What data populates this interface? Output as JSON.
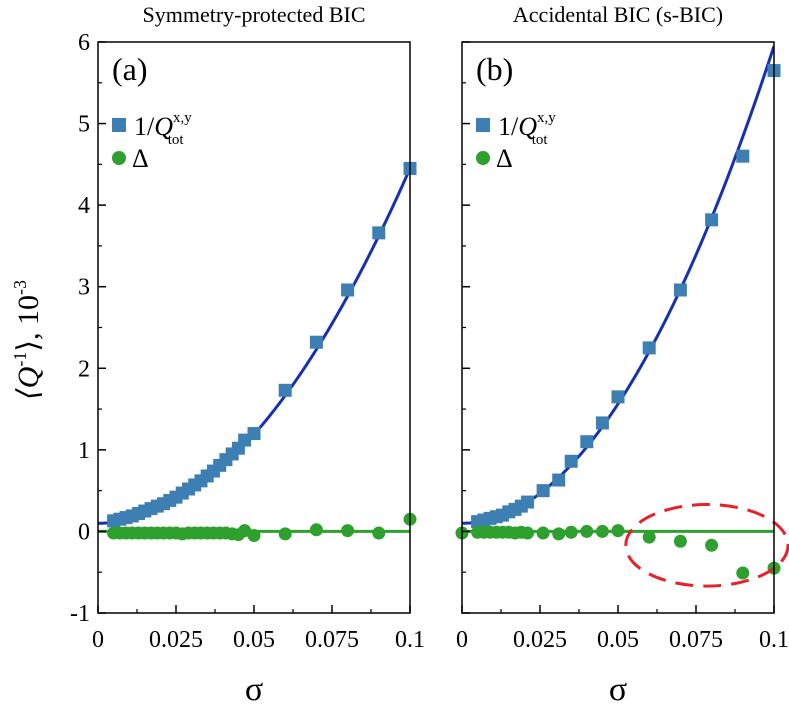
{
  "figure": {
    "ylabel_main": "⟨Q",
    "ylabel_sup": "-1",
    "ylabel_tail": "⟩, 10",
    "ylabel_exp": "-3"
  },
  "chart_data": [
    {
      "type": "scatter",
      "title": "Symmetry-protected BIC",
      "panel_label": "(a)",
      "xlabel": "σ",
      "xlim": [
        0,
        0.1
      ],
      "ylim": [
        -1,
        6
      ],
      "xticks": [
        "0",
        "0.025",
        "0.05",
        "0.075",
        "0.1"
      ],
      "yticks": [
        "-1",
        "0",
        "1",
        "2",
        "3",
        "4",
        "5",
        "6"
      ],
      "legend_placement": "top-left",
      "series": [
        {
          "name": "1/Q_tot^{x,y}",
          "legend_main": "1/",
          "legend_q": "Q",
          "legend_sub": "tot",
          "legend_sup": "x,y",
          "marker": "square",
          "color": "#3d7fb3",
          "x": [
            0.005,
            0.007,
            0.009,
            0.011,
            0.013,
            0.015,
            0.017,
            0.019,
            0.021,
            0.023,
            0.025,
            0.027,
            0.029,
            0.031,
            0.033,
            0.035,
            0.037,
            0.039,
            0.041,
            0.043,
            0.045,
            0.047,
            0.05,
            0.06,
            0.07,
            0.08,
            0.09,
            0.1
          ],
          "y": [
            0.13,
            0.15,
            0.17,
            0.19,
            0.22,
            0.25,
            0.28,
            0.31,
            0.34,
            0.38,
            0.42,
            0.47,
            0.52,
            0.57,
            0.62,
            0.68,
            0.74,
            0.81,
            0.88,
            0.95,
            1.02,
            1.12,
            1.2,
            1.73,
            2.32,
            2.96,
            3.66,
            4.45
          ]
        },
        {
          "name": "Δ",
          "legend_main": "Δ",
          "marker": "circle",
          "color": "#2ea02e",
          "x": [
            0.005,
            0.007,
            0.009,
            0.011,
            0.013,
            0.015,
            0.017,
            0.019,
            0.021,
            0.023,
            0.025,
            0.027,
            0.029,
            0.031,
            0.033,
            0.035,
            0.037,
            0.039,
            0.041,
            0.043,
            0.045,
            0.047,
            0.05,
            0.06,
            0.07,
            0.08,
            0.09,
            0.1
          ],
          "y": [
            -0.02,
            -0.02,
            -0.02,
            -0.02,
            -0.02,
            -0.02,
            -0.02,
            -0.02,
            -0.02,
            -0.02,
            -0.02,
            -0.03,
            -0.02,
            -0.02,
            -0.02,
            -0.02,
            -0.02,
            -0.02,
            -0.02,
            -0.03,
            -0.04,
            0.01,
            -0.05,
            -0.03,
            0.02,
            0.01,
            -0.02,
            0.15
          ]
        }
      ],
      "fits": [
        {
          "color": "#1530b0",
          "coef": [
            0.1,
            0,
            435
          ]
        },
        {
          "color": "#2ea02e",
          "coef": [
            0,
            0,
            0
          ]
        }
      ]
    },
    {
      "type": "scatter",
      "title": "Accidental BIC (s-BIC)",
      "panel_label": "(b)",
      "xlabel": "σ",
      "xlim": [
        0,
        0.1
      ],
      "ylim": [
        -1,
        6
      ],
      "xticks": [
        "0",
        "0.025",
        "0.05",
        "0.075",
        "0.1"
      ],
      "yticks": [],
      "legend_placement": "top-left",
      "series": [
        {
          "name": "1/Q_tot^{x,y}",
          "legend_main": "1/",
          "legend_q": "Q",
          "legend_sub": "tot",
          "legend_sup": "x,y",
          "marker": "square",
          "color": "#3d7fb3",
          "x": [
            0.005,
            0.007,
            0.009,
            0.011,
            0.013,
            0.015,
            0.017,
            0.019,
            0.021,
            0.026,
            0.031,
            0.035,
            0.04,
            0.045,
            0.05,
            0.06,
            0.07,
            0.08,
            0.09,
            0.1
          ],
          "y": [
            0.12,
            0.14,
            0.16,
            0.18,
            0.2,
            0.24,
            0.27,
            0.31,
            0.36,
            0.5,
            0.63,
            0.86,
            1.1,
            1.33,
            1.65,
            2.25,
            2.96,
            3.82,
            4.6,
            5.65
          ]
        },
        {
          "name": "Δ",
          "legend_main": "Δ",
          "marker": "circle",
          "color": "#2ea02e",
          "x": [
            0,
            0.005,
            0.007,
            0.009,
            0.011,
            0.013,
            0.015,
            0.017,
            0.019,
            0.021,
            0.026,
            0.031,
            0.035,
            0.04,
            0.045,
            0.05,
            0.06,
            0.07,
            0.08,
            0.09,
            0.1
          ],
          "y": [
            -0.02,
            -0.01,
            -0.01,
            -0.01,
            -0.01,
            -0.01,
            -0.01,
            -0.02,
            -0.01,
            -0.02,
            -0.02,
            -0.03,
            -0.01,
            0.0,
            0.0,
            0.01,
            -0.07,
            -0.12,
            -0.17,
            -0.51,
            -0.45
          ]
        }
      ],
      "fits": [
        {
          "color": "#1530b0",
          "coef": [
            0.1,
            0,
            585
          ]
        },
        {
          "color": "#2ea02e",
          "coef": [
            0,
            0,
            0
          ]
        }
      ],
      "annotation": {
        "shape": "dashed-ellipse",
        "color": "#e8202a",
        "center": [
          0.0785,
          -0.17
        ],
        "radii": [
          0.026,
          0.5
        ]
      }
    }
  ]
}
